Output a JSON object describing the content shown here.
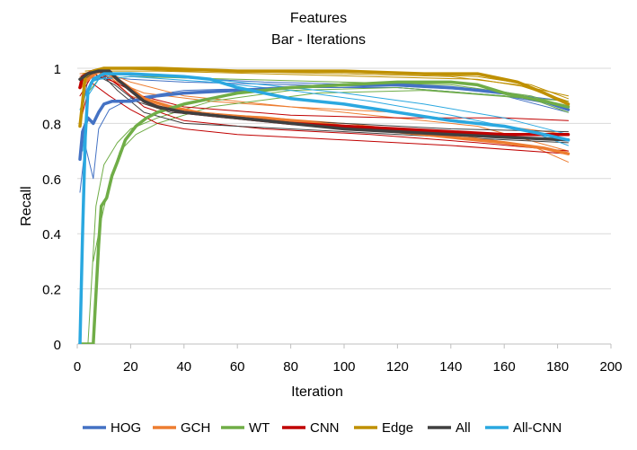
{
  "chart_data": {
    "type": "line",
    "title": [
      "Features",
      "Bar - Iterations"
    ],
    "xlabel": "Iteration",
    "ylabel": "Recall",
    "xlim": [
      0,
      200
    ],
    "ylim": [
      0,
      1
    ],
    "xticks": [
      "0",
      "20",
      "40",
      "60",
      "80",
      "100",
      "120",
      "140",
      "160",
      "180",
      "200"
    ],
    "yticks": [
      "0",
      "0.2",
      "0.4",
      "0.6",
      "0.8",
      "1"
    ],
    "grid": true,
    "legend_position": "bottom",
    "series": [
      {
        "name": "HOG",
        "color": "#4472C4",
        "width": 3.5,
        "points": [
          [
            1,
            0.67
          ],
          [
            2,
            0.77
          ],
          [
            4,
            0.82
          ],
          [
            6,
            0.8
          ],
          [
            8,
            0.84
          ],
          [
            10,
            0.87
          ],
          [
            13,
            0.88
          ],
          [
            20,
            0.88
          ],
          [
            30,
            0.9
          ],
          [
            40,
            0.91
          ],
          [
            60,
            0.92
          ],
          [
            80,
            0.93
          ],
          [
            100,
            0.94
          ],
          [
            120,
            0.94
          ],
          [
            140,
            0.93
          ],
          [
            160,
            0.91
          ],
          [
            175,
            0.88
          ],
          [
            184,
            0.85
          ]
        ]
      },
      {
        "name": "GCH",
        "color": "#ED7D31",
        "width": 3.5,
        "points": [
          [
            1,
            0.93
          ],
          [
            4,
            0.96
          ],
          [
            8,
            0.99
          ],
          [
            12,
            0.98
          ],
          [
            18,
            0.94
          ],
          [
            25,
            0.89
          ],
          [
            35,
            0.86
          ],
          [
            50,
            0.83
          ],
          [
            70,
            0.82
          ],
          [
            100,
            0.79
          ],
          [
            120,
            0.77
          ],
          [
            140,
            0.75
          ],
          [
            160,
            0.73
          ],
          [
            175,
            0.71
          ],
          [
            184,
            0.69
          ]
        ]
      },
      {
        "name": "WT",
        "color": "#70AD47",
        "width": 3.5,
        "points": [
          [
            1,
            0.0
          ],
          [
            5,
            0.0
          ],
          [
            6,
            0.0
          ],
          [
            8,
            0.36
          ],
          [
            9,
            0.5
          ],
          [
            11,
            0.53
          ],
          [
            13,
            0.61
          ],
          [
            15,
            0.66
          ],
          [
            18,
            0.74
          ],
          [
            22,
            0.79
          ],
          [
            26,
            0.82
          ],
          [
            30,
            0.84
          ],
          [
            40,
            0.87
          ],
          [
            50,
            0.89
          ],
          [
            60,
            0.91
          ],
          [
            80,
            0.93
          ],
          [
            100,
            0.94
          ],
          [
            120,
            0.95
          ],
          [
            140,
            0.95
          ],
          [
            150,
            0.94
          ],
          [
            160,
            0.91
          ],
          [
            175,
            0.88
          ],
          [
            184,
            0.86
          ]
        ]
      },
      {
        "name": "CNN",
        "color": "#C00000",
        "width": 3.5,
        "points": [
          [
            1,
            0.93
          ],
          [
            2,
            0.97
          ],
          [
            4,
            0.98
          ],
          [
            6,
            0.99
          ],
          [
            8,
            0.99
          ],
          [
            12,
            0.99
          ],
          [
            15,
            0.96
          ],
          [
            20,
            0.92
          ],
          [
            25,
            0.88
          ],
          [
            30,
            0.86
          ],
          [
            40,
            0.84
          ],
          [
            50,
            0.83
          ],
          [
            60,
            0.82
          ],
          [
            80,
            0.8
          ],
          [
            100,
            0.79
          ],
          [
            120,
            0.78
          ],
          [
            140,
            0.77
          ],
          [
            160,
            0.76
          ],
          [
            184,
            0.76
          ]
        ]
      },
      {
        "name": "Edge",
        "color": "#BF9000",
        "width": 3.5,
        "points": [
          [
            1,
            0.79
          ],
          [
            3,
            0.97
          ],
          [
            6,
            0.99
          ],
          [
            10,
            1.0
          ],
          [
            30,
            1.0
          ],
          [
            60,
            0.99
          ],
          [
            100,
            0.99
          ],
          [
            130,
            0.98
          ],
          [
            150,
            0.98
          ],
          [
            165,
            0.95
          ],
          [
            175,
            0.91
          ],
          [
            184,
            0.87
          ]
        ]
      },
      {
        "name": "All",
        "color": "#404040",
        "width": 3.5,
        "points": [
          [
            1,
            0.96
          ],
          [
            4,
            0.98
          ],
          [
            8,
            0.99
          ],
          [
            12,
            0.99
          ],
          [
            15,
            0.96
          ],
          [
            20,
            0.92
          ],
          [
            25,
            0.88
          ],
          [
            30,
            0.86
          ],
          [
            40,
            0.84
          ],
          [
            60,
            0.82
          ],
          [
            80,
            0.8
          ],
          [
            100,
            0.78
          ],
          [
            120,
            0.77
          ],
          [
            140,
            0.76
          ],
          [
            160,
            0.75
          ],
          [
            184,
            0.74
          ]
        ]
      },
      {
        "name": "All-CNN",
        "color": "#2AA8E0",
        "width": 3.5,
        "points": [
          [
            1,
            0.0
          ],
          [
            2,
            0.4
          ],
          [
            3,
            0.75
          ],
          [
            4,
            0.92
          ],
          [
            6,
            0.96
          ],
          [
            10,
            0.98
          ],
          [
            20,
            0.98
          ],
          [
            40,
            0.97
          ],
          [
            50,
            0.96
          ],
          [
            60,
            0.93
          ],
          [
            80,
            0.89
          ],
          [
            100,
            0.87
          ],
          [
            120,
            0.84
          ],
          [
            140,
            0.81
          ],
          [
            160,
            0.79
          ],
          [
            175,
            0.76
          ],
          [
            184,
            0.74
          ]
        ]
      }
    ],
    "thin_lines": [
      {
        "color": "#4472C4",
        "points": [
          [
            1,
            0.55
          ],
          [
            3,
            0.72
          ],
          [
            6,
            0.6
          ],
          [
            8,
            0.78
          ],
          [
            12,
            0.85
          ],
          [
            20,
            0.89
          ],
          [
            40,
            0.92
          ],
          [
            80,
            0.93
          ],
          [
            120,
            0.93
          ],
          [
            160,
            0.9
          ],
          [
            184,
            0.86
          ]
        ]
      },
      {
        "color": "#4472C4",
        "points": [
          [
            2,
            0.88
          ],
          [
            5,
            0.95
          ],
          [
            10,
            0.97
          ],
          [
            20,
            0.96
          ],
          [
            40,
            0.95
          ],
          [
            80,
            0.94
          ],
          [
            120,
            0.93
          ],
          [
            160,
            0.9
          ],
          [
            184,
            0.84
          ]
        ]
      },
      {
        "color": "#4472C4",
        "points": [
          [
            1,
            0.8
          ],
          [
            4,
            0.96
          ],
          [
            10,
            0.98
          ],
          [
            30,
            0.97
          ],
          [
            70,
            0.95
          ],
          [
            110,
            0.94
          ],
          [
            150,
            0.92
          ],
          [
            184,
            0.88
          ]
        ]
      },
      {
        "color": "#ED7D31",
        "points": [
          [
            1,
            0.97
          ],
          [
            5,
            0.99
          ],
          [
            12,
            0.97
          ],
          [
            20,
            0.9
          ],
          [
            35,
            0.85
          ],
          [
            60,
            0.83
          ],
          [
            100,
            0.8
          ],
          [
            140,
            0.76
          ],
          [
            170,
            0.72
          ],
          [
            184,
            0.66
          ]
        ]
      },
      {
        "color": "#ED7D31",
        "points": [
          [
            2,
            0.96
          ],
          [
            8,
            0.99
          ],
          [
            15,
            0.95
          ],
          [
            25,
            0.91
          ],
          [
            50,
            0.88
          ],
          [
            80,
            0.86
          ],
          [
            120,
            0.84
          ],
          [
            160,
            0.79
          ],
          [
            184,
            0.76
          ]
        ]
      },
      {
        "color": "#ED7D31",
        "points": [
          [
            1,
            0.98
          ],
          [
            10,
            0.99
          ],
          [
            20,
            0.95
          ],
          [
            40,
            0.9
          ],
          [
            70,
            0.87
          ],
          [
            110,
            0.83
          ],
          [
            150,
            0.79
          ],
          [
            184,
            0.7
          ]
        ]
      },
      {
        "color": "#70AD47",
        "points": [
          [
            4,
            0.0
          ],
          [
            7,
            0.5
          ],
          [
            10,
            0.65
          ],
          [
            15,
            0.73
          ],
          [
            20,
            0.78
          ],
          [
            30,
            0.82
          ],
          [
            50,
            0.88
          ],
          [
            80,
            0.92
          ],
          [
            120,
            0.93
          ],
          [
            160,
            0.9
          ],
          [
            184,
            0.88
          ]
        ]
      },
      {
        "color": "#70AD47",
        "points": [
          [
            6,
            0.3
          ],
          [
            9,
            0.45
          ],
          [
            12,
            0.58
          ],
          [
            16,
            0.7
          ],
          [
            22,
            0.76
          ],
          [
            30,
            0.8
          ],
          [
            50,
            0.86
          ],
          [
            90,
            0.91
          ],
          [
            130,
            0.92
          ],
          [
            170,
            0.89
          ],
          [
            184,
            0.84
          ]
        ]
      },
      {
        "color": "#70AD47",
        "points": [
          [
            3,
            0.9
          ],
          [
            8,
            0.96
          ],
          [
            20,
            0.97
          ],
          [
            60,
            0.96
          ],
          [
            100,
            0.95
          ],
          [
            140,
            0.94
          ],
          [
            170,
            0.9
          ],
          [
            184,
            0.86
          ]
        ]
      },
      {
        "color": "#C00000",
        "points": [
          [
            1,
            0.8
          ],
          [
            5,
            0.95
          ],
          [
            12,
            0.9
          ],
          [
            20,
            0.85
          ],
          [
            30,
            0.8
          ],
          [
            40,
            0.78
          ],
          [
            60,
            0.76
          ],
          [
            100,
            0.74
          ],
          [
            140,
            0.72
          ],
          [
            184,
            0.69
          ]
        ]
      },
      {
        "color": "#C00000",
        "points": [
          [
            2,
            0.96
          ],
          [
            8,
            0.99
          ],
          [
            15,
            0.94
          ],
          [
            25,
            0.86
          ],
          [
            40,
            0.81
          ],
          [
            70,
            0.78
          ],
          [
            110,
            0.76
          ],
          [
            150,
            0.73
          ],
          [
            184,
            0.7
          ]
        ]
      },
      {
        "color": "#C00000",
        "points": [
          [
            1,
            0.9
          ],
          [
            6,
            0.98
          ],
          [
            14,
            0.95
          ],
          [
            24,
            0.9
          ],
          [
            40,
            0.86
          ],
          [
            80,
            0.83
          ],
          [
            120,
            0.82
          ],
          [
            160,
            0.82
          ],
          [
            184,
            0.81
          ]
        ]
      },
      {
        "color": "#BF9000",
        "points": [
          [
            2,
            0.98
          ],
          [
            10,
            1.0
          ],
          [
            40,
            0.99
          ],
          [
            80,
            0.99
          ],
          [
            120,
            0.98
          ],
          [
            150,
            0.97
          ],
          [
            170,
            0.94
          ],
          [
            184,
            0.89
          ]
        ]
      },
      {
        "color": "#BF9000",
        "points": [
          [
            1,
            0.96
          ],
          [
            8,
            0.99
          ],
          [
            30,
            0.99
          ],
          [
            70,
            0.98
          ],
          [
            110,
            0.97
          ],
          [
            150,
            0.96
          ],
          [
            170,
            0.93
          ],
          [
            184,
            0.9
          ]
        ]
      },
      {
        "color": "#BF9000",
        "points": [
          [
            3,
            0.99
          ],
          [
            15,
            1.0
          ],
          [
            50,
            0.99
          ],
          [
            100,
            0.98
          ],
          [
            140,
            0.97
          ],
          [
            165,
            0.94
          ],
          [
            184,
            0.88
          ]
        ]
      },
      {
        "color": "#404040",
        "points": [
          [
            2,
            0.97
          ],
          [
            8,
            0.99
          ],
          [
            15,
            0.92
          ],
          [
            25,
            0.84
          ],
          [
            40,
            0.8
          ],
          [
            60,
            0.79
          ],
          [
            100,
            0.77
          ],
          [
            140,
            0.75
          ],
          [
            184,
            0.73
          ]
        ]
      },
      {
        "color": "#404040",
        "points": [
          [
            1,
            0.95
          ],
          [
            6,
            0.98
          ],
          [
            14,
            0.94
          ],
          [
            22,
            0.88
          ],
          [
            35,
            0.84
          ],
          [
            60,
            0.82
          ],
          [
            100,
            0.8
          ],
          [
            140,
            0.78
          ],
          [
            184,
            0.77
          ]
        ]
      },
      {
        "color": "#2AA8E0",
        "points": [
          [
            2,
            0.7
          ],
          [
            4,
            0.9
          ],
          [
            8,
            0.96
          ],
          [
            20,
            0.97
          ],
          [
            50,
            0.95
          ],
          [
            80,
            0.92
          ],
          [
            110,
            0.88
          ],
          [
            140,
            0.83
          ],
          [
            170,
            0.77
          ],
          [
            184,
            0.72
          ]
        ]
      },
      {
        "color": "#2AA8E0",
        "points": [
          [
            1,
            0.85
          ],
          [
            5,
            0.95
          ],
          [
            15,
            0.98
          ],
          [
            40,
            0.97
          ],
          [
            70,
            0.94
          ],
          [
            100,
            0.91
          ],
          [
            130,
            0.87
          ],
          [
            160,
            0.82
          ],
          [
            184,
            0.76
          ]
        ]
      }
    ]
  }
}
